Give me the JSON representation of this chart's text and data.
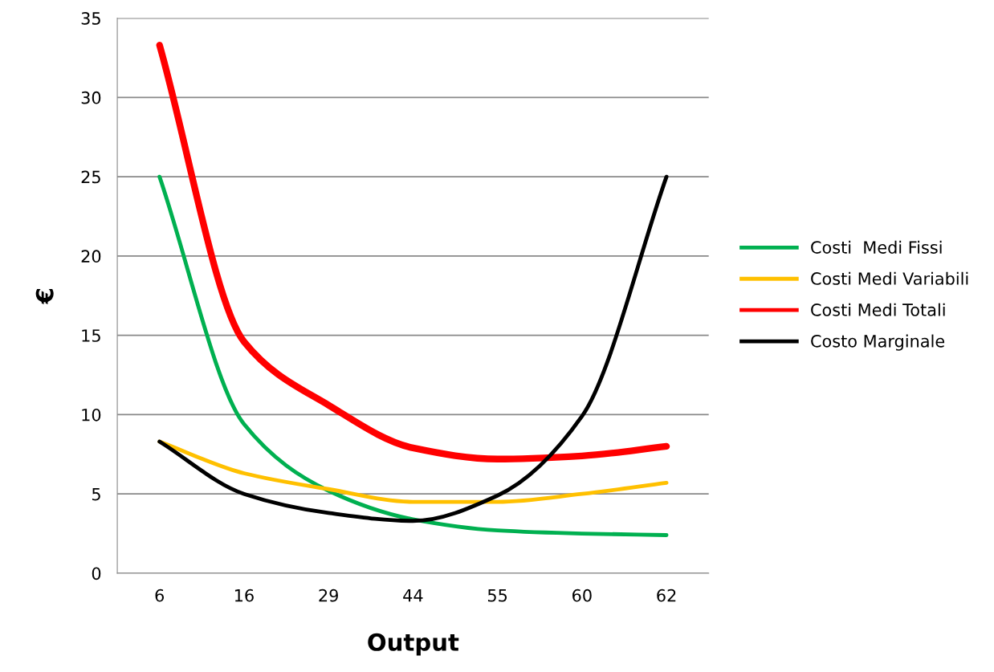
{
  "chart_data": {
    "type": "line",
    "xlabel": "Output",
    "ylabel": "€",
    "categories": [
      "6",
      "16",
      "29",
      "44",
      "55",
      "60",
      "62"
    ],
    "series": [
      {
        "name": "Costi  Medi Fissi",
        "color": "#00b050",
        "values": [
          25,
          9.4,
          5.2,
          3.4,
          2.7,
          2.5,
          2.4
        ]
      },
      {
        "name": "Costi Medi Variabili",
        "color": "#ffc000",
        "values": [
          8.3,
          6.3,
          5.3,
          4.5,
          4.5,
          5.0,
          5.7
        ]
      },
      {
        "name": "Costi Medi Totali",
        "color": "#ff0000",
        "values": [
          33.3,
          14.6,
          10.6,
          7.9,
          7.2,
          7.4,
          8.0
        ]
      },
      {
        "name": "Costo Marginale",
        "color": "#000000",
        "values": [
          8.3,
          5.0,
          3.8,
          3.3,
          4.9,
          9.9,
          25.0
        ]
      }
    ],
    "ylim": [
      0,
      35
    ],
    "yticks": [
      0,
      5,
      10,
      15,
      20,
      25,
      30,
      35
    ],
    "grid": "y",
    "legend": "right",
    "marker": "none",
    "line_style": "solid"
  }
}
